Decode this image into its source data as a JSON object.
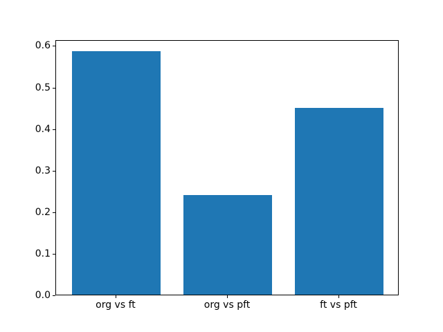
{
  "figure": {
    "background_color": "#ffffff",
    "frame_color": "#000000"
  },
  "chart_data": {
    "type": "bar",
    "title": "",
    "xlabel": "",
    "ylabel": "",
    "categories": [
      "org vs ft",
      "org vs pft",
      "ft vs pft"
    ],
    "values": [
      0.585,
      0.24,
      0.449
    ],
    "bar_color": "#1f77b4",
    "bar_width_fraction": 0.8,
    "xlim": [
      -0.54,
      2.54
    ],
    "ylim": [
      0,
      0.614
    ],
    "yticks": [
      0.0,
      0.1,
      0.2,
      0.3,
      0.4,
      0.5,
      0.6
    ],
    "ytick_labels": [
      "0.0",
      "0.1",
      "0.2",
      "0.3",
      "0.4",
      "0.5",
      "0.6"
    ],
    "grid": false,
    "legend": null
  }
}
